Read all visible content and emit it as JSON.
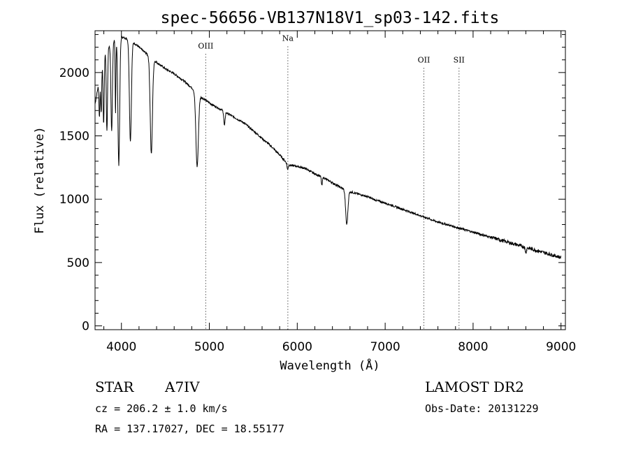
{
  "chart_data": {
    "type": "line",
    "title": "spec-56656-VB137N18V1_sp03-142.fits",
    "xlabel": "Wavelength (Å)",
    "ylabel": "Flux (relative)",
    "xlim": [
      3700,
      9050
    ],
    "ylim": [
      -30,
      2330
    ],
    "x_ticks": [
      4000,
      5000,
      6000,
      7000,
      8000,
      9000
    ],
    "x_tick_labels": [
      "4000",
      "5000",
      "6000",
      "7000",
      "8000",
      "9000"
    ],
    "y_ticks": [
      0,
      500,
      1000,
      1500,
      2000
    ],
    "y_tick_labels": [
      "0",
      "500",
      "1000",
      "1500",
      "2000"
    ],
    "spectral_lines": [
      {
        "name": "OIII",
        "x": 4959,
        "label_y": 2190
      },
      {
        "name": "Na",
        "x": 5893,
        "label_y": 2250
      },
      {
        "name": "OII",
        "x": 7440,
        "label_y": 2080
      },
      {
        "name": "SII",
        "x": 7840,
        "label_y": 2080
      }
    ],
    "continuum": {
      "x": [
        3700,
        3800,
        3900,
        4000,
        4100,
        4200,
        4300,
        4400,
        4500,
        4600,
        4700,
        4800,
        4900,
        5000,
        5100,
        5200,
        5300,
        5400,
        5500,
        5600,
        5700,
        5800,
        5900,
        6000,
        6100,
        6200,
        6300,
        6400,
        6500,
        6600,
        6700,
        6800,
        6900,
        7000,
        7200,
        7400,
        7600,
        7800,
        8000,
        8200,
        8400,
        8600,
        8800,
        9000
      ],
      "y": [
        1750,
        2150,
        2250,
        2280,
        2260,
        2200,
        2140,
        2080,
        2030,
        1990,
        1940,
        1880,
        1810,
        1760,
        1720,
        1680,
        1640,
        1600,
        1540,
        1480,
        1420,
        1350,
        1270,
        1260,
        1240,
        1200,
        1170,
        1130,
        1090,
        1060,
        1040,
        1020,
        990,
        970,
        920,
        870,
        820,
        780,
        740,
        700,
        660,
        620,
        580,
        540
      ]
    },
    "absorption_lines": [
      {
        "x": 3750,
        "depth": 300,
        "width": 8
      },
      {
        "x": 3770,
        "depth": 350,
        "width": 8
      },
      {
        "x": 3798,
        "depth": 550,
        "width": 9
      },
      {
        "x": 3835,
        "depth": 650,
        "width": 10
      },
      {
        "x": 3889,
        "depth": 700,
        "width": 12
      },
      {
        "x": 3933,
        "depth": 600,
        "width": 6
      },
      {
        "x": 3970,
        "depth": 1000,
        "width": 14
      },
      {
        "x": 4102,
        "depth": 800,
        "width": 16
      },
      {
        "x": 4340,
        "depth": 760,
        "width": 18
      },
      {
        "x": 4861,
        "depth": 580,
        "width": 20
      },
      {
        "x": 5172,
        "depth": 110,
        "width": 10
      },
      {
        "x": 5890,
        "depth": 45,
        "width": 8
      },
      {
        "x": 6280,
        "depth": 70,
        "width": 8
      },
      {
        "x": 6563,
        "depth": 270,
        "width": 18
      },
      {
        "x": 8600,
        "depth": 40,
        "width": 10
      }
    ]
  },
  "info": {
    "object_type": "STAR",
    "subclass": "A7IV",
    "survey": "LAMOST DR2",
    "redshift": "cz = 206.2 ± 1.0 km/s",
    "obs_date": "Obs-Date: 20131229",
    "coords": "RA = 137.17027, DEC =  18.55177"
  }
}
